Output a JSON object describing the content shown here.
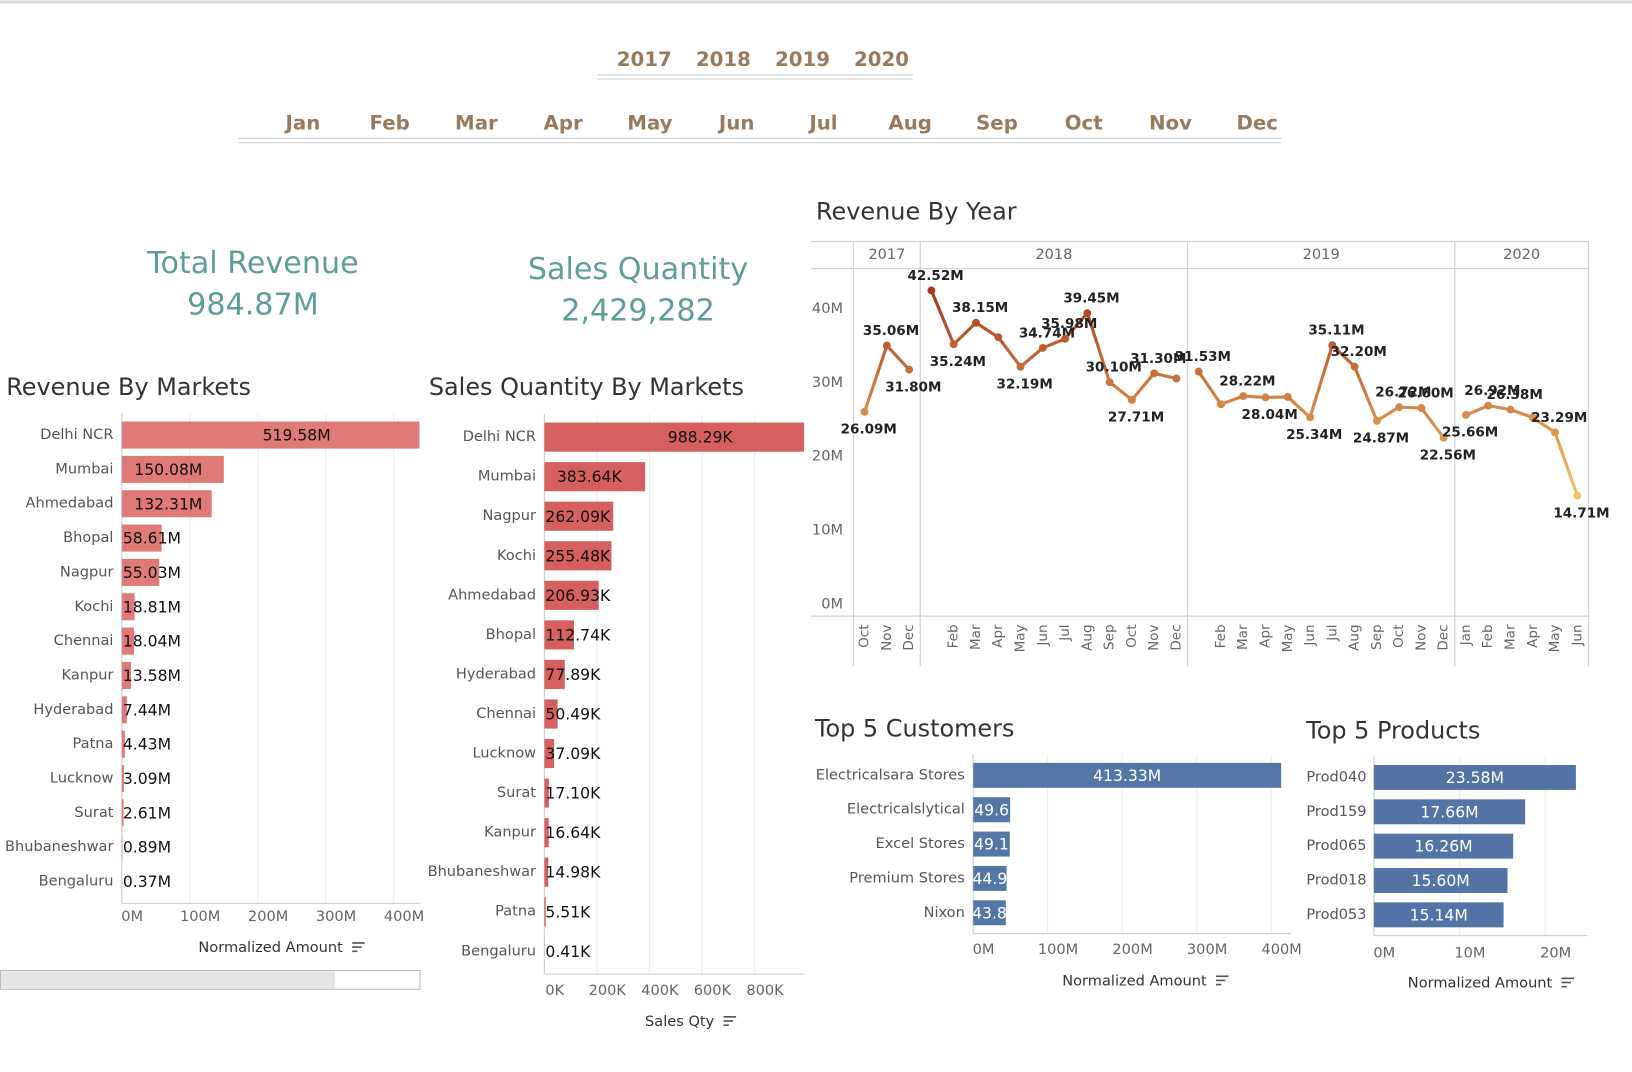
{
  "filters": {
    "years": [
      "2017",
      "2018",
      "2019",
      "2020"
    ],
    "months": [
      "Jan",
      "Feb",
      "Mar",
      "Apr",
      "May",
      "Jun",
      "Jul",
      "Aug",
      "Sep",
      "Oct",
      "Nov",
      "Dec"
    ]
  },
  "kpis": [
    {
      "label": "Total Revenue",
      "value": "984.87M"
    },
    {
      "label": "Sales Quantity",
      "value": "2,429,282"
    }
  ],
  "chart_data": [
    {
      "type": "bar",
      "horizontal": true,
      "title": "Revenue By Markets",
      "xlabel": "Normalized Amount",
      "color": "#e07a78",
      "grid": true,
      "categories": [
        "Delhi NCR",
        "Mumbai",
        "Ahmedabad",
        "Bhopal",
        "Nagpur",
        "Kochi",
        "Chennai",
        "Kanpur",
        "Hyderabad",
        "Patna",
        "Lucknow",
        "Surat",
        "Bhubaneshwar",
        "Bengaluru"
      ],
      "values": [
        519.58,
        150.08,
        132.31,
        58.61,
        55.03,
        18.81,
        18.04,
        13.58,
        7.44,
        4.43,
        3.09,
        2.61,
        0.89,
        0.37
      ],
      "value_labels": [
        "519.58M",
        "150.08M",
        "132.31M",
        "58.61M",
        "55.03M",
        "18.81M",
        "18.04M",
        "13.58M",
        "7.44M",
        "4.43M",
        "3.09M",
        "2.61M",
        "0.89M",
        "0.37M"
      ],
      "xlim": [
        0,
        438
      ],
      "xticks": [
        {
          "value": 0,
          "label": "0M"
        },
        {
          "value": 100,
          "label": "100M"
        },
        {
          "value": 200,
          "label": "200M"
        },
        {
          "value": 300,
          "label": "300M"
        },
        {
          "value": 400,
          "label": "400M"
        }
      ]
    },
    {
      "type": "bar",
      "horizontal": true,
      "title": "Sales Quantity By Markets",
      "xlabel": "Sales Qty",
      "color": "#d65f5f",
      "grid": true,
      "categories": [
        "Delhi NCR",
        "Mumbai",
        "Nagpur",
        "Kochi",
        "Ahmedabad",
        "Bhopal",
        "Hyderabad",
        "Chennai",
        "Lucknow",
        "Surat",
        "Kanpur",
        "Bhubaneshwar",
        "Patna",
        "Bengaluru"
      ],
      "values": [
        988.29,
        383.64,
        262.09,
        255.48,
        206.93,
        112.74,
        77.89,
        50.49,
        37.09,
        17.1,
        16.64,
        14.98,
        5.51,
        0.41
      ],
      "value_labels": [
        "988.29K",
        "383.64K",
        "262.09K",
        "255.48K",
        "206.93K",
        "112.74K",
        "77.89K",
        "50.49K",
        "37.09K",
        "17.10K",
        "16.64K",
        "14.98K",
        "5.51K",
        "0.41K"
      ],
      "xlim": [
        0,
        990
      ],
      "xticks": [
        {
          "value": 0,
          "label": "0K"
        },
        {
          "value": 200,
          "label": "200K"
        },
        {
          "value": 400,
          "label": "400K"
        },
        {
          "value": 600,
          "label": "600K"
        },
        {
          "value": 800,
          "label": "800K"
        }
      ]
    },
    {
      "type": "line",
      "title": "Revenue By Year",
      "grid": false,
      "color_scale": [
        "#f5c46a",
        "#a8381a"
      ],
      "ylim": [
        -1.6,
        45.5
      ],
      "yticks": [
        {
          "value": 0,
          "label": "0M"
        },
        {
          "value": 10,
          "label": "10M"
        },
        {
          "value": 20,
          "label": "20M"
        },
        {
          "value": 30,
          "label": "30M"
        },
        {
          "value": 40,
          "label": "40M"
        }
      ],
      "panes": [
        {
          "label": "2017",
          "categories": [
            "Oct",
            "Nov",
            "Dec"
          ],
          "values": [
            26.09,
            35.06,
            31.8
          ],
          "value_labels": [
            "26.09M",
            "35.06M",
            "31.80M"
          ]
        },
        {
          "label": "2018",
          "categories": [
            null,
            "Feb",
            "Mar",
            "Apr",
            "May",
            "Jun",
            "Jul",
            "Aug",
            "Sep",
            "Oct",
            "Nov",
            "Dec"
          ],
          "values": [
            42.52,
            35.24,
            38.15,
            36.2,
            32.19,
            34.74,
            35.98,
            39.45,
            30.1,
            27.71,
            31.3,
            30.6
          ],
          "value_labels": [
            "42.52M",
            "35.24M",
            "38.15M",
            null,
            "32.19M",
            "34.74M",
            "35.98M",
            "39.45M",
            "30.10M",
            "27.71M",
            "31.30M",
            null
          ]
        },
        {
          "label": "2019",
          "categories": [
            null,
            "Feb",
            "Mar",
            "Apr",
            "May",
            "Jun",
            "Jul",
            "Aug",
            "Sep",
            "Oct",
            "Nov",
            "Dec"
          ],
          "values": [
            31.53,
            27.1,
            28.22,
            28.04,
            28.1,
            25.34,
            35.11,
            32.2,
            24.87,
            26.72,
            26.6,
            22.56
          ],
          "value_labels": [
            "31.53M",
            null,
            "28.22M",
            "28.04M",
            null,
            "25.34M",
            "35.11M",
            "32.20M",
            "24.87M",
            "26.72M",
            "26.60M",
            "22.56M"
          ]
        },
        {
          "label": "2020",
          "categories": [
            "Jan",
            "Feb",
            "Mar",
            "Apr",
            "May",
            "Jun"
          ],
          "values": [
            25.66,
            26.92,
            26.38,
            25.3,
            23.29,
            14.71
          ],
          "value_labels": [
            "25.66M",
            "26.92M",
            "26.38M",
            null,
            "23.29M",
            "14.71M"
          ]
        }
      ]
    },
    {
      "type": "bar",
      "horizontal": true,
      "title": "Top 5 Customers",
      "xlabel": "Normalized Amount",
      "color": "#5577a6",
      "grid": true,
      "categories": [
        "Electricalsara Stores",
        "Electricalslytical",
        "Excel Stores",
        "Premium Stores",
        "Nixon"
      ],
      "values": [
        413.33,
        49.6,
        49.1,
        44.9,
        43.8
      ],
      "value_labels": [
        "413.33M",
        "49.6",
        "49.1",
        "44.9",
        "43.8"
      ],
      "xlim": [
        0,
        426
      ],
      "xticks": [
        {
          "value": 0,
          "label": "0M"
        },
        {
          "value": 100,
          "label": "100M"
        },
        {
          "value": 200,
          "label": "200M"
        },
        {
          "value": 300,
          "label": "300M"
        },
        {
          "value": 400,
          "label": "400M"
        }
      ]
    },
    {
      "type": "bar",
      "horizontal": true,
      "title": "Top 5 Products",
      "xlabel": "Normalized Amount",
      "color": "#5474a6",
      "grid": true,
      "categories": [
        "Prod040",
        "Prod159",
        "Prod065",
        "Prod018",
        "Prod053"
      ],
      "values": [
        23.58,
        17.66,
        16.26,
        15.6,
        15.14
      ],
      "value_labels": [
        "23.58M",
        "17.66M",
        "16.26M",
        "15.60M",
        "15.14M"
      ],
      "xlim": [
        0,
        24.9
      ],
      "xticks": [
        {
          "value": 0,
          "label": "0M"
        },
        {
          "value": 10,
          "label": "10M"
        },
        {
          "value": 20,
          "label": "20M"
        }
      ]
    }
  ]
}
